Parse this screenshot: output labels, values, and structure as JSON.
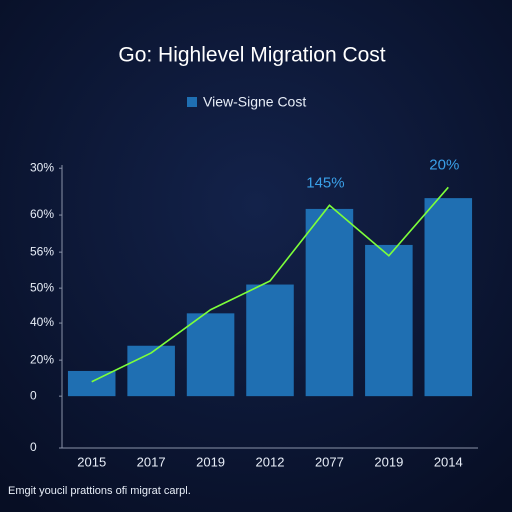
{
  "chart_data": {
    "type": "bar",
    "title": "Go: Highlevel Migration Cost",
    "footnote": "Emgit youcil prattions ofi migrat carpl.",
    "categories": [
      "2015",
      "2017",
      "2019",
      "2012",
      "2077",
      "2019",
      "2014"
    ],
    "series": [
      {
        "name": "View-Signe Cost",
        "type": "bar",
        "color": "#1f6fb2",
        "values": [
          7,
          14,
          23,
          31,
          52,
          42,
          55
        ]
      },
      {
        "type": "line",
        "color": "#7dff3a",
        "values": [
          4,
          12,
          24,
          32,
          53,
          39,
          58
        ]
      }
    ],
    "annotations": [
      "145%",
      "20%"
    ],
    "ylim": [
      -14.4,
      64.2
    ],
    "yticks": [
      {
        "value": 63.3,
        "label": "30%"
      },
      {
        "value": 50.3,
        "label": "60%"
      },
      {
        "value": 40,
        "label": "56%"
      },
      {
        "value": 30,
        "label": "50%"
      },
      {
        "value": 20.3,
        "label": "40%"
      },
      {
        "value": 10,
        "label": "20%"
      },
      0,
      {
        "value": -14.4,
        "label": "0"
      }
    ],
    "legend": "top"
  }
}
